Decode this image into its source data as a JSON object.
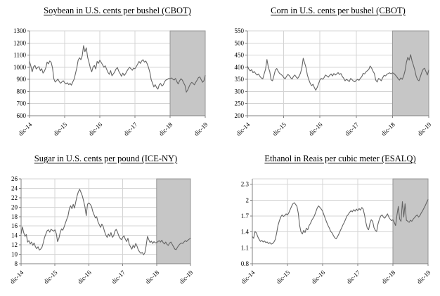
{
  "colors": {
    "line": "#646464",
    "shade_fill": "#c6c6c6",
    "shade_border": "#969696",
    "grid": "#d4d4d4",
    "axis": "#808080",
    "text": "#000000",
    "background": "#ffffff"
  },
  "chart_data": [
    {
      "id": "soybean",
      "type": "line",
      "title": "Soybean in U.S. cents per bushel (CBOT)",
      "ylim": [
        600,
        1300
      ],
      "y_ticks": [
        600,
        700,
        800,
        900,
        1000,
        1100,
        1200,
        1300
      ],
      "y_tick_labels": [
        "600",
        "700",
        "800",
        "900",
        "1000",
        "1100",
        "1200",
        "1300"
      ],
      "x_tick_labels": [
        "dic-14",
        "dic-15",
        "dic-16",
        "dic-17",
        "dic-18",
        "dic-19"
      ],
      "grid": true,
      "shaded_region": {
        "x_from_label": "dic-18",
        "x_to_label": "dic-19"
      },
      "values": [
        1048,
        1010,
        962,
        1005,
        1015,
        985,
        998,
        1005,
        972,
        988,
        952,
        968,
        995,
        1042,
        1028,
        1052,
        1040,
        995,
        905,
        878,
        890,
        902,
        882,
        868,
        880,
        888,
        872,
        862,
        872,
        856,
        866,
        852,
        878,
        902,
        948,
        995,
        1058,
        1078,
        1062,
        1095,
        1178,
        1128,
        1160,
        1082,
        1040,
        995,
        962,
        1002,
        1015,
        985,
        1048,
        1032,
        1058,
        1040,
        1022,
        1000,
        1012,
        985,
        958,
        942,
        972,
        930,
        945,
        962,
        985,
        998,
        968,
        948,
        925,
        952,
        932,
        945,
        968,
        985,
        1000,
        988,
        975,
        992,
        988,
        1005,
        1025,
        1048,
        1032,
        1052,
        1062,
        1042,
        1052,
        1030,
        1000,
        958,
        898,
        868,
        838,
        856,
        832,
        820,
        856,
        866,
        845,
        856,
        882,
        895,
        900,
        908,
        905,
        912,
        902,
        895,
        908,
        882,
        862,
        888,
        905,
        895,
        872,
        850,
        795,
        812,
        838,
        862,
        876,
        866,
        855,
        876,
        895,
        915,
        920,
        898,
        876,
        888,
        932
      ]
    },
    {
      "id": "corn",
      "type": "line",
      "title": "Corn in U.S. cents per bushel (CBOT)",
      "ylim": [
        200,
        550
      ],
      "y_ticks": [
        200,
        250,
        300,
        350,
        400,
        450,
        500,
        550
      ],
      "y_tick_labels": [
        "200",
        "250",
        "300",
        "350",
        "400",
        "450",
        "500",
        "550"
      ],
      "x_tick_labels": [
        "dic-14",
        "dic-15",
        "dic-16",
        "dic-17",
        "dic-18",
        "dic-19"
      ],
      "grid": true,
      "shaded_region": {
        "x_from_label": "dic-18",
        "x_to_label": "dic-19"
      },
      "values": [
        405,
        392,
        385,
        390,
        378,
        382,
        373,
        368,
        372,
        362,
        356,
        352,
        372,
        392,
        432,
        400,
        382,
        348,
        344,
        365,
        388,
        395,
        384,
        375,
        371,
        366,
        358,
        352,
        362,
        370,
        366,
        357,
        351,
        362,
        368,
        359,
        354,
        362,
        375,
        396,
        437,
        418,
        398,
        368,
        349,
        334,
        324,
        330,
        316,
        305,
        316,
        332,
        348,
        354,
        350,
        358,
        368,
        364,
        359,
        367,
        372,
        364,
        374,
        368,
        372,
        378,
        370,
        374,
        362,
        355,
        344,
        350,
        346,
        341,
        354,
        349,
        343,
        340,
        346,
        350,
        346,
        355,
        361,
        375,
        372,
        381,
        386,
        391,
        405,
        397,
        384,
        374,
        347,
        339,
        354,
        350,
        344,
        357,
        367,
        364,
        371,
        374,
        377,
        373,
        377,
        374,
        368,
        361,
        353,
        347,
        356,
        350,
        364,
        386,
        420,
        441,
        429,
        452,
        426,
        408,
        388,
        363,
        349,
        344,
        361,
        379,
        392,
        396,
        382,
        368,
        388
      ]
    },
    {
      "id": "sugar",
      "type": "line",
      "title": "Sugar in U.S. cents per pound (ICE-NY)",
      "ylim": [
        8,
        26
      ],
      "y_ticks": [
        8,
        10,
        12,
        14,
        16,
        18,
        20,
        22,
        24,
        26
      ],
      "y_tick_labels": [
        "8",
        "10",
        "12",
        "14",
        "16",
        "18",
        "20",
        "22",
        "24",
        "26"
      ],
      "x_tick_labels": [
        "dic-14",
        "dic-15",
        "dic-16",
        "dic-17",
        "dic-18",
        "dic-19"
      ],
      "grid": true,
      "shaded_region": {
        "x_from_label": "dic-18",
        "x_to_label": "dic-19"
      },
      "values": [
        14.3,
        15.8,
        14.6,
        13.8,
        14.2,
        12.6,
        12.9,
        12.2,
        12.6,
        11.9,
        12.4,
        11.6,
        11.2,
        11.6,
        10.9,
        11.1,
        11.5,
        12.4,
        13.6,
        14.3,
        15.0,
        15.2,
        14.7,
        15.3,
        15.1,
        14.9,
        15.2,
        14.4,
        12.7,
        13.4,
        14.6,
        15.4,
        15.1,
        15.8,
        16.6,
        17.4,
        18.1,
        19.6,
        20.3,
        19.7,
        20.6,
        19.8,
        21.2,
        22.4,
        23.3,
        23.8,
        23.1,
        22.4,
        21.3,
        20.1,
        18.2,
        20.6,
        20.9,
        20.6,
        20.2,
        19.1,
        18.4,
        17.7,
        18.0,
        16.9,
        16.3,
        15.7,
        16.4,
        15.9,
        14.9,
        14.1,
        13.6,
        14.3,
        13.8,
        14.6,
        13.6,
        13.9,
        14.9,
        15.3,
        14.7,
        13.9,
        13.4,
        13.1,
        13.6,
        13.9,
        13.2,
        12.7,
        13.4,
        12.1,
        11.6,
        11.1,
        11.9,
        11.4,
        12.3,
        11.7,
        10.9,
        10.5,
        10.2,
        10.4,
        9.9,
        10.3,
        11.9,
        13.8,
        13.1,
        12.5,
        12.8,
        12.3,
        12.7,
        12.4,
        12.5,
        12.7,
        12.9,
        12.6,
        13.0,
        12.5,
        12.2,
        12.6,
        12.1,
        11.9,
        12.4,
        12.6,
        12.1,
        11.6,
        11.1,
        11.0,
        11.5,
        11.9,
        12.2,
        12.4,
        12.3,
        12.6,
        12.9,
        12.7,
        13.0,
        13.2,
        13.4
      ]
    },
    {
      "id": "ethanol",
      "type": "line",
      "title": "Ethanol in Reais per cubic meter (ESALQ)",
      "ylim": [
        0.8,
        2.4
      ],
      "y_ticks": [
        0.8,
        1.1,
        1.4,
        1.7,
        2.0,
        2.3
      ],
      "y_tick_labels": [
        "0.8",
        "1.1",
        "1.4",
        "1.7",
        "2",
        "2.3"
      ],
      "x_tick_labels": [
        "dic-14",
        "dic-15",
        "dic-16",
        "dic-17",
        "dic-18",
        "dic-19"
      ],
      "grid": true,
      "shaded_region": {
        "x_from_label": "dic-18",
        "x_to_label": "dic-19"
      },
      "values": [
        1.31,
        1.28,
        1.41,
        1.38,
        1.31,
        1.26,
        1.22,
        1.24,
        1.21,
        1.23,
        1.2,
        1.21,
        1.18,
        1.2,
        1.17,
        1.18,
        1.21,
        1.26,
        1.38,
        1.52,
        1.61,
        1.68,
        1.72,
        1.69,
        1.71,
        1.74,
        1.72,
        1.76,
        1.82,
        1.88,
        1.93,
        1.95,
        1.92,
        1.88,
        1.75,
        1.52,
        1.4,
        1.36,
        1.43,
        1.39,
        1.47,
        1.44,
        1.52,
        1.56,
        1.62,
        1.66,
        1.71,
        1.78,
        1.85,
        1.89,
        1.86,
        1.83,
        1.79,
        1.72,
        1.65,
        1.58,
        1.52,
        1.47,
        1.41,
        1.38,
        1.33,
        1.29,
        1.27,
        1.31,
        1.36,
        1.42,
        1.47,
        1.53,
        1.58,
        1.64,
        1.7,
        1.73,
        1.77,
        1.8,
        1.78,
        1.82,
        1.79,
        1.83,
        1.8,
        1.84,
        1.81,
        1.86,
        1.83,
        1.72,
        1.58,
        1.47,
        1.44,
        1.56,
        1.63,
        1.6,
        1.48,
        1.43,
        1.41,
        1.55,
        1.64,
        1.7,
        1.72,
        1.68,
        1.66,
        1.7,
        1.74,
        1.68,
        1.64,
        1.61,
        1.63,
        1.58,
        1.52,
        1.72,
        1.88,
        1.64,
        1.6,
        1.97,
        1.68,
        1.93,
        1.62,
        1.6,
        1.58,
        1.62,
        1.6,
        1.64,
        1.67,
        1.7,
        1.72,
        1.68,
        1.71,
        1.76,
        1.8,
        1.85,
        1.9,
        1.96,
        2.01
      ]
    }
  ]
}
